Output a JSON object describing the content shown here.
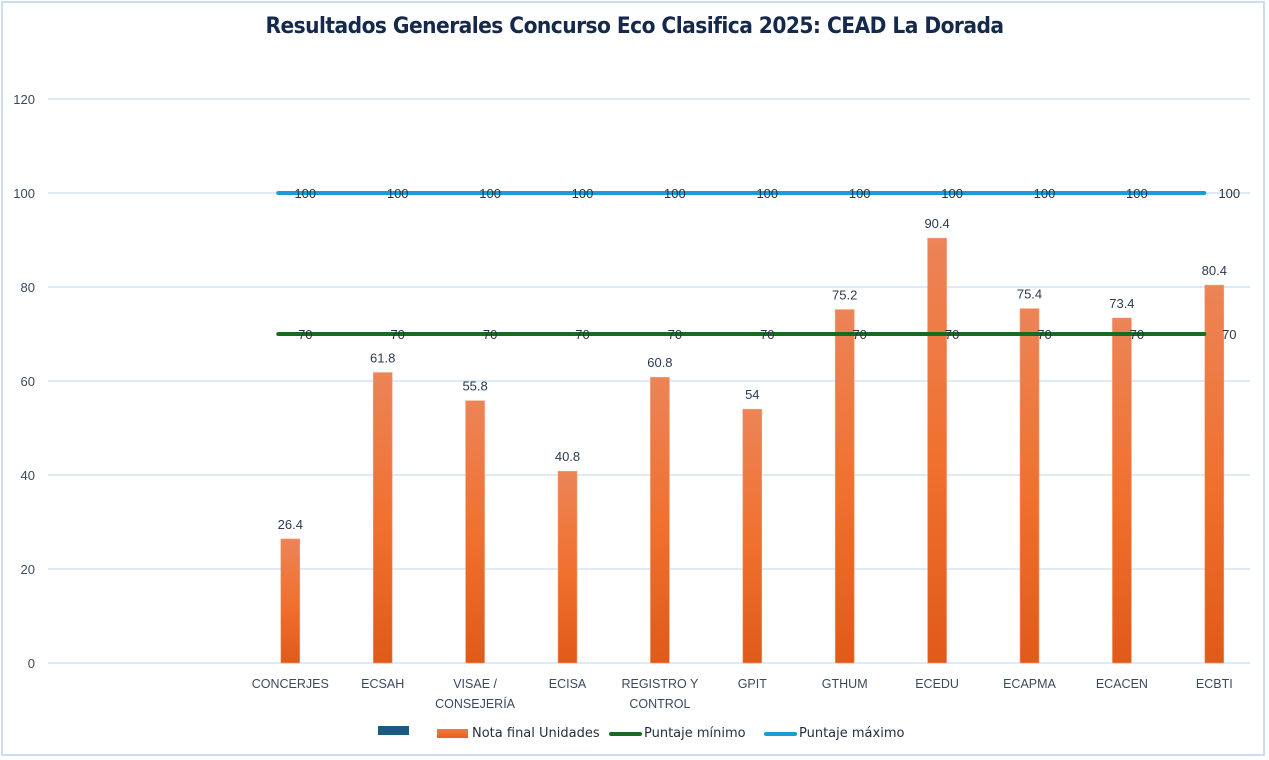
{
  "chart_data": {
    "type": "bar",
    "title": "Resultados Generales Concurso Eco Clasifica 2025: CEAD La Dorada",
    "xlabel": "",
    "ylabel": "",
    "ylim": [
      0,
      120
    ],
    "yticks": [
      0,
      20,
      40,
      60,
      80,
      100,
      120
    ],
    "grid": true,
    "legend_position": "bottom",
    "categories": [
      "",
      "",
      "CONCERJES",
      "ECSAH",
      "VISAE /\nCONSEJERÍA",
      "ECISA",
      "REGISTRO Y\nCONTROL",
      "GPIT",
      "GTHUM",
      "ECEDU",
      "ECAPMA",
      "ECACEN",
      "ECBTI"
    ],
    "series": [
      {
        "name": "",
        "kind": "bar",
        "color": "#1b5a80",
        "values": [
          null,
          null,
          null,
          null,
          null,
          null,
          null,
          null,
          null,
          null,
          null,
          null,
          null
        ]
      },
      {
        "name": "Nota final Unidades",
        "kind": "bar",
        "color": "#f07030",
        "values": [
          null,
          null,
          26.4,
          61.8,
          55.8,
          40.8,
          60.8,
          54,
          75.2,
          90.4,
          75.4,
          73.4,
          80.4
        ]
      },
      {
        "name": "Puntaje mínimo",
        "kind": "line",
        "color": "#196b24",
        "values": [
          null,
          null,
          70,
          70,
          70,
          70,
          70,
          70,
          70,
          70,
          70,
          70,
          70
        ]
      },
      {
        "name": "Puntaje máximo",
        "kind": "line",
        "color": "#1a9dd7",
        "values": [
          null,
          null,
          100,
          100,
          100,
          100,
          100,
          100,
          100,
          100,
          100,
          100,
          100
        ]
      }
    ]
  },
  "colors": {
    "title": "#14294b",
    "grid": "#c9def2",
    "axis_text": "#3a4a5c",
    "label_text": "#2a3a52"
  }
}
